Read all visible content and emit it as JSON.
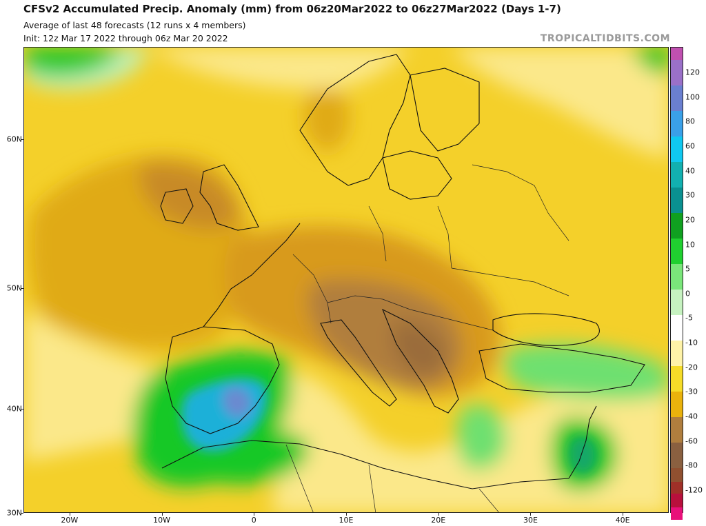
{
  "header": {
    "title": "CFSv2 Accumulated Precip. Anomaly (mm) from 06z20Mar2022 to 06z27Mar2022 (Days 1-7)",
    "subtitle_1": "Average of last 48 forecasts (12 runs x 4 members)",
    "subtitle_2": "Init: 12z Mar 17 2022 through 06z Mar 20 2022",
    "brand": "TROPICALTIDBITS.COM"
  },
  "axes": {
    "lat_labels": [
      {
        "label": "60N",
        "lat": 60
      },
      {
        "label": "50N",
        "lat": 50
      },
      {
        "label": "40N",
        "lat": 40
      },
      {
        "label": "30N",
        "lat": 30
      }
    ],
    "lon_labels": [
      {
        "label": "20W",
        "lon": -20
      },
      {
        "label": "10W",
        "lon": -10
      },
      {
        "label": "0",
        "lon": 0
      },
      {
        "label": "10E",
        "lon": 10
      },
      {
        "label": "20E",
        "lon": 20
      },
      {
        "label": "30E",
        "lon": 30
      },
      {
        "label": "40E",
        "lon": 40
      }
    ],
    "lon_range": [
      -25,
      45
    ],
    "lat_range": [
      30,
      65
    ]
  },
  "colorbar": {
    "labels": [
      "120",
      "100",
      "80",
      "60",
      "40",
      "30",
      "20",
      "10",
      "5",
      "0",
      "-5",
      "-10",
      "-20",
      "-30",
      "-40",
      "-60",
      "-80",
      "-120"
    ],
    "colors": {
      "top": "#c050b0",
      "blue_high": "#6a7fd0",
      "blue": "#3aa0e8",
      "cyan": "#10c8f0",
      "teal": "#12b0b0",
      "teal_dark": "#0a9090",
      "green_dark": "#10a020",
      "green": "#20d030",
      "green_light": "#7ae67a",
      "green_pale": "#c6f2c0",
      "white": "#ffffff",
      "yellow_pale": "#fff3a8",
      "yellow": "#f6dc28",
      "gold": "#eab20c",
      "orange_brown": "#d89a1e",
      "brown": "#b07e3e",
      "brown_dark": "#8a6040",
      "red_brown": "#905030",
      "red": "#a03028",
      "crimson": "#b8103c",
      "magenta": "#e8107a"
    }
  },
  "map": {
    "variable": "Accumulated Precip. Anomaly (mm)",
    "colors": {
      "dry_heavy": "#9a6c3a",
      "dry_strong": "#c88a26",
      "dry_moderate": "#e0aa18",
      "dry_light": "#f4d02a",
      "dry_pale": "#fbe88a",
      "wet_pale": "#bff0b8",
      "wet_light": "#6ee070",
      "wet": "#18c828",
      "wet_strong": "#12a868",
      "wet_heavy": "#1ab0d8",
      "wet_peak": "#6a8ad0",
      "ocean_neutral": "#ffffff",
      "coast": "#111111"
    }
  }
}
